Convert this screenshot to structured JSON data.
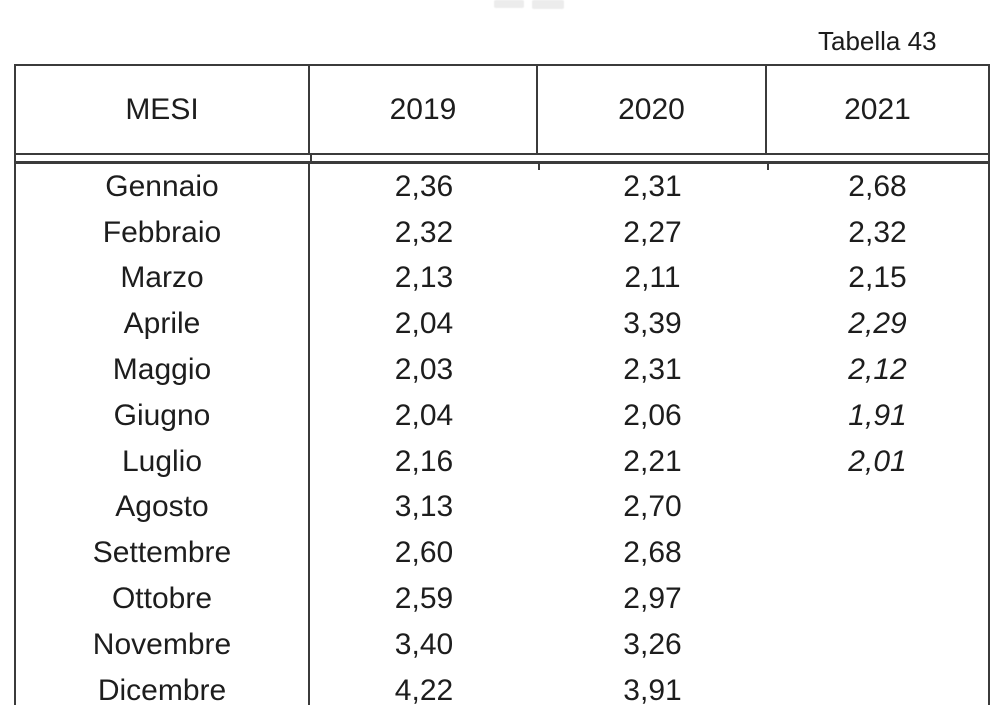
{
  "page": {
    "table_label": "Tabella 43",
    "cropped_top_fragment": "illegible cut-off text remnant",
    "colors": {
      "background": "#ffffff",
      "border": "#3b3b3b",
      "text": "#1d1d1d"
    }
  },
  "table": {
    "columns": [
      "MESI",
      "2019",
      "2020",
      "2021"
    ],
    "rows": [
      {
        "month": "Gennaio",
        "y2019": "2,36",
        "y2020": "2,31",
        "y2021": "2,68",
        "y2021_italic": false
      },
      {
        "month": "Febbraio",
        "y2019": "2,32",
        "y2020": "2,27",
        "y2021": "2,32",
        "y2021_italic": false
      },
      {
        "month": "Marzo",
        "y2019": "2,13",
        "y2020": "2,11",
        "y2021": "2,15",
        "y2021_italic": false
      },
      {
        "month": "Aprile",
        "y2019": "2,04",
        "y2020": "3,39",
        "y2021": "2,29",
        "y2021_italic": true
      },
      {
        "month": "Maggio",
        "y2019": "2,03",
        "y2020": "2,31",
        "y2021": "2,12",
        "y2021_italic": true
      },
      {
        "month": "Giugno",
        "y2019": "2,04",
        "y2020": "2,06",
        "y2021": "1,91",
        "y2021_italic": true
      },
      {
        "month": "Luglio",
        "y2019": "2,16",
        "y2020": "2,21",
        "y2021": "2,01",
        "y2021_italic": true
      },
      {
        "month": "Agosto",
        "y2019": "3,13",
        "y2020": "2,70",
        "y2021": "",
        "y2021_italic": false
      },
      {
        "month": "Settembre",
        "y2019": "2,60",
        "y2020": "2,68",
        "y2021": "",
        "y2021_italic": false
      },
      {
        "month": "Ottobre",
        "y2019": "2,59",
        "y2020": "2,97",
        "y2021": "",
        "y2021_italic": false
      },
      {
        "month": "Novembre",
        "y2019": "3,40",
        "y2020": "3,26",
        "y2021": "",
        "y2021_italic": false
      },
      {
        "month": "Dicembre",
        "y2019": "4,22",
        "y2020": "3,91",
        "y2021": "",
        "y2021_italic": false
      }
    ]
  }
}
